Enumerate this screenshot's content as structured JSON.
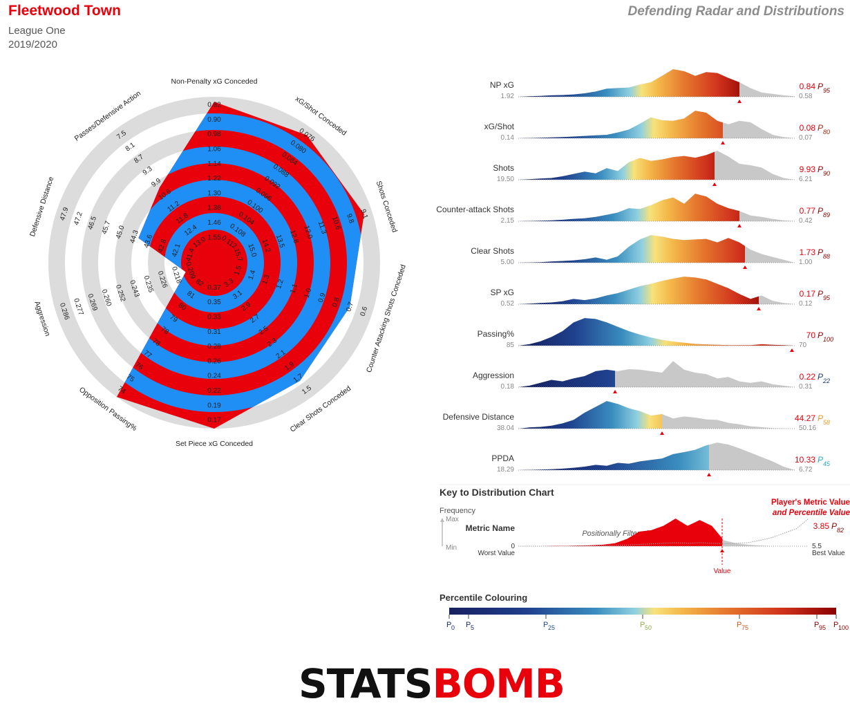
{
  "header": {
    "team": "Fleetwood Town",
    "league": "League One",
    "season": "2019/2020",
    "chart_title": "Defending Radar and Distributions"
  },
  "colors": {
    "accent_red": "#e8000b",
    "radar_blue": "#1f8ff5",
    "ring_grey": "#dcdcdc",
    "dist_grey": "#c8c8c8"
  },
  "chart_data": [
    {
      "type": "radar",
      "metrics": [
        {
          "label": "Non-Penalty xG Conceded",
          "ticks": [
            "0.82",
            "0.90",
            "0.98",
            "1.06",
            "1.14",
            "1.22",
            "1.30",
            "1.38",
            "1.46",
            "1.55",
            "1.63"
          ],
          "value": 0.84
        },
        {
          "label": "xG/Shot Conceded",
          "ticks": [
            "0.076",
            "0.080",
            "0.084",
            "0.088",
            "0.092",
            "0.096",
            "0.100",
            "0.104",
            "0.108",
            "0.112",
            "0.116"
          ],
          "value": 0.08
        },
        {
          "label": "Shots Conceded",
          "ticks": [
            "9.1",
            "9.8",
            "10.6",
            "11.3",
            "12.0",
            "12.8",
            "13.5",
            "14.2",
            "15.0",
            "15.7",
            "16.5"
          ],
          "value": 9.93
        },
        {
          "label": "Counter Attacking Shots Conceded",
          "ticks": [
            "0.6",
            "0.7",
            "0.8",
            "0.9",
            "1.0",
            "1.1",
            "1.2",
            "1.3",
            "1.4",
            "1.5",
            "1.6"
          ],
          "value": 0.77
        },
        {
          "label": "Clear Shots Conceded",
          "ticks": [
            "1.5",
            "1.7",
            "1.9",
            "2.1",
            "2.3",
            "2.5",
            "2.7",
            "2.9",
            "3.1",
            "3.3",
            "3.5"
          ],
          "value": 1.73
        },
        {
          "label": "Set Piece xG Conceded",
          "ticks": [
            "0.17",
            "0.19",
            "0.22",
            "0.24",
            "0.26",
            "0.28",
            "0.31",
            "0.33",
            "0.35",
            "0.37",
            "0.39"
          ],
          "value": 0.17
        },
        {
          "label": "Opposition Passing%",
          "ticks": [
            "74",
            "75",
            "76",
            "77",
            "78",
            "78",
            "79",
            "80",
            "81",
            "82",
            "83"
          ],
          "value": 70
        },
        {
          "label": "Aggression",
          "ticks": [
            "0.286",
            "0.277",
            "0.269",
            "0.260",
            "0.252",
            "0.243",
            "0.235",
            "0.226",
            "0.218",
            "0.209",
            "0.200"
          ],
          "value": 0.22
        },
        {
          "label": "Defensive Distance",
          "ticks": [
            "47.9",
            "47.2",
            "46.5",
            "45.7",
            "45.0",
            "44.3",
            "43.6",
            "42.8",
            "42.1",
            "41.4",
            "40.7"
          ],
          "value": 44.27
        },
        {
          "label": "Passes/Defensive Action",
          "ticks": [
            "7.5",
            "8.1",
            "8.7",
            "9.3",
            "9.9",
            "10.6",
            "11.2",
            "11.8",
            "12.4",
            "13.0",
            "13.6"
          ],
          "value": 10.33
        }
      ],
      "value_fraction": [
        0.97,
        0.95,
        0.95,
        0.86,
        0.88,
        1.0,
        1.0,
        0.18,
        0.48,
        0.56
      ]
    },
    {
      "type": "area",
      "distributions": [
        {
          "name": "NP xG",
          "worst": "1.92",
          "best": "0.58",
          "value": "0.84",
          "pct": "95",
          "pct_color": "#8b0000",
          "value_pos": 0.8,
          "pct_frac": 0.95,
          "density": [
            0.0,
            0.02,
            0.03,
            0.05,
            0.06,
            0.08,
            0.12,
            0.18,
            0.28,
            0.3,
            0.32,
            0.42,
            0.5,
            0.72,
            0.95,
            0.88,
            0.72,
            0.85,
            0.82,
            0.65,
            0.5,
            0.3,
            0.15,
            0.1,
            0.05,
            0.02
          ]
        },
        {
          "name": "xG/Shot",
          "worst": "0.14",
          "best": "0.07",
          "value": "0.08",
          "pct": "80",
          "pct_color": "#a1220b",
          "value_pos": 0.74,
          "pct_frac": 0.8,
          "density": [
            0.0,
            0.01,
            0.02,
            0.03,
            0.04,
            0.06,
            0.08,
            0.1,
            0.12,
            0.2,
            0.3,
            0.5,
            0.72,
            0.62,
            0.6,
            0.68,
            0.95,
            0.88,
            0.6,
            0.48,
            0.6,
            0.55,
            0.32,
            0.12,
            0.04,
            0.0
          ]
        },
        {
          "name": "Shots",
          "worst": "19.50",
          "best": "6.21",
          "value": "9.93",
          "pct": "90",
          "pct_color": "#8b0000",
          "value_pos": 0.71,
          "pct_frac": 0.9,
          "density": [
            0.0,
            0.02,
            0.04,
            0.06,
            0.12,
            0.2,
            0.28,
            0.22,
            0.4,
            0.3,
            0.6,
            0.75,
            0.65,
            0.7,
            0.78,
            0.82,
            0.76,
            0.85,
            1.0,
            0.8,
            0.55,
            0.5,
            0.42,
            0.2,
            0.06,
            0.0
          ]
        },
        {
          "name": "Counter-attack Shots",
          "worst": "2.15",
          "best": "0.42",
          "value": "0.77",
          "pct": "89",
          "pct_color": "#8b0000",
          "value_pos": 0.8,
          "pct_frac": 0.89,
          "density": [
            0.0,
            0.01,
            0.02,
            0.03,
            0.05,
            0.08,
            0.1,
            0.15,
            0.22,
            0.3,
            0.45,
            0.42,
            0.55,
            0.72,
            0.82,
            0.6,
            0.95,
            0.85,
            0.6,
            0.45,
            0.35,
            0.2,
            0.15,
            0.08,
            0.03,
            0.0
          ]
        },
        {
          "name": "Clear Shots",
          "worst": "5.00",
          "best": "1.00",
          "value": "1.73",
          "pct": "88",
          "pct_color": "#8b0000",
          "value_pos": 0.82,
          "pct_frac": 0.88,
          "density": [
            0.0,
            0.01,
            0.02,
            0.04,
            0.06,
            0.08,
            0.12,
            0.18,
            0.1,
            0.22,
            0.55,
            0.8,
            0.95,
            0.9,
            0.82,
            0.78,
            0.8,
            0.82,
            0.7,
            0.85,
            0.7,
            0.45,
            0.3,
            0.2,
            0.1,
            0.0
          ]
        },
        {
          "name": "SP xG",
          "worst": "0.52",
          "best": "0.12",
          "value": "0.17",
          "pct": "95",
          "pct_color": "#8b0000",
          "value_pos": 0.87,
          "pct_frac": 0.95,
          "density": [
            0.0,
            0.02,
            0.04,
            0.06,
            0.1,
            0.18,
            0.14,
            0.2,
            0.3,
            0.38,
            0.5,
            0.62,
            0.7,
            0.8,
            0.88,
            0.95,
            0.92,
            0.85,
            0.7,
            0.55,
            0.35,
            0.18,
            0.3,
            0.12,
            0.04,
            0.0
          ]
        },
        {
          "name": "Passing%",
          "worst": "85",
          "best": "70",
          "value": "70",
          "pct": "100",
          "pct_color": "#8b0000",
          "value_pos": 0.99,
          "pct_frac": 0.99,
          "density": [
            0.0,
            0.05,
            0.15,
            0.3,
            0.5,
            0.8,
            0.95,
            0.92,
            0.8,
            0.65,
            0.5,
            0.38,
            0.28,
            0.2,
            0.14,
            0.1,
            0.06,
            0.04,
            0.03,
            0.02,
            0.02,
            0.02,
            0.05,
            0.03,
            0.02,
            0.0
          ]
        },
        {
          "name": "Aggression",
          "worst": "0.18",
          "best": "0.31",
          "value": "0.22",
          "pct": "22",
          "pct_color": "#1a3a7a",
          "value_pos": 0.35,
          "pct_frac": 0.22,
          "density": [
            0.0,
            0.05,
            0.15,
            0.25,
            0.2,
            0.3,
            0.38,
            0.55,
            0.6,
            0.55,
            0.62,
            0.6,
            0.55,
            0.5,
            0.9,
            0.6,
            0.5,
            0.45,
            0.3,
            0.35,
            0.2,
            0.15,
            0.2,
            0.1,
            0.05,
            0.0
          ]
        },
        {
          "name": "Defensive Distance",
          "worst": "38.04",
          "best": "50.16",
          "value": "44.27",
          "pct": "58",
          "pct_color": "#e69a28",
          "value_pos": 0.52,
          "pct_frac": 0.58,
          "density": [
            0.0,
            0.04,
            0.06,
            0.1,
            0.18,
            0.3,
            0.55,
            0.75,
            0.95,
            0.85,
            0.7,
            0.6,
            0.45,
            0.5,
            0.35,
            0.42,
            0.38,
            0.32,
            0.3,
            0.2,
            0.15,
            0.08,
            0.05,
            0.02,
            0.01,
            0.0
          ]
        },
        {
          "name": "PPDA",
          "worst": "18.29",
          "best": "6.72",
          "value": "10.33",
          "pct": "45",
          "pct_color": "#2aa8c8",
          "value_pos": 0.69,
          "pct_frac": 0.45,
          "density": [
            0.0,
            0.01,
            0.02,
            0.03,
            0.05,
            0.08,
            0.12,
            0.18,
            0.15,
            0.25,
            0.22,
            0.3,
            0.35,
            0.4,
            0.55,
            0.62,
            0.7,
            0.85,
            0.95,
            0.88,
            0.75,
            0.6,
            0.45,
            0.3,
            0.12,
            0.0
          ]
        }
      ]
    }
  ],
  "key": {
    "title": "Key to Distribution Chart",
    "frequency": "Frequency",
    "max": "Max",
    "min": "Min",
    "metric_name": "Metric Name",
    "positionally_filtered": "Positionally Filtered",
    "worst_num": "0",
    "worst": "Worst Value",
    "best_num": "5.5",
    "best": "Best Value",
    "player_line1": "Player's Metric Value",
    "player_line2": "and Percentile Value",
    "player_value": "3.85",
    "player_pct": "82",
    "value_label": "Value",
    "colouring_title": "Percentile Colouring",
    "percentiles": [
      {
        "n": "0",
        "frac": 0.0,
        "color": "#1a2a6c"
      },
      {
        "n": "5",
        "frac": 0.05,
        "color": "#1a2a6c"
      },
      {
        "n": "25",
        "frac": 0.25,
        "color": "#1f4e8c"
      },
      {
        "n": "50",
        "frac": 0.5,
        "color": "#8fae4a"
      },
      {
        "n": "75",
        "frac": 0.75,
        "color": "#c9551a"
      },
      {
        "n": "95",
        "frac": 0.95,
        "color": "#8b0000"
      },
      {
        "n": "100",
        "frac": 1.0,
        "color": "#8b0000"
      }
    ]
  },
  "logo": {
    "part1": "STATS",
    "part2": "BOMB"
  }
}
